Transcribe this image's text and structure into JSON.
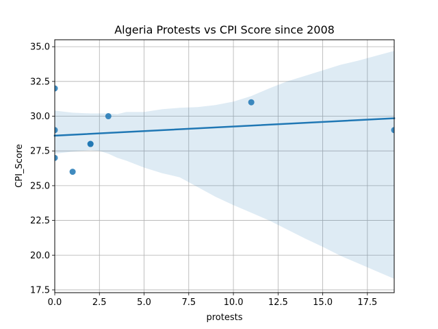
{
  "chart_data": {
    "type": "scatter",
    "title": "Algeria Protests vs CPI Score since 2008",
    "xlabel": "protests",
    "ylabel": "CPI_Score",
    "xlim": [
      0,
      19
    ],
    "ylim": [
      17.3,
      35.5
    ],
    "xticks": [
      "0.0",
      "2.5",
      "5.0",
      "7.5",
      "10.0",
      "12.5",
      "15.0",
      "17.5"
    ],
    "yticks": [
      "17.5",
      "20.0",
      "22.5",
      "25.0",
      "27.5",
      "30.0",
      "32.5",
      "35.0"
    ],
    "grid": true,
    "colors": {
      "points": "#1f77b4",
      "line": "#1f77b4",
      "band": "#1f77b4"
    },
    "points": [
      {
        "x": 0,
        "y": 32
      },
      {
        "x": 0,
        "y": 29
      },
      {
        "x": 0,
        "y": 27
      },
      {
        "x": 1,
        "y": 26
      },
      {
        "x": 2,
        "y": 28
      },
      {
        "x": 2,
        "y": 28
      },
      {
        "x": 3,
        "y": 30
      },
      {
        "x": 11,
        "y": 31
      },
      {
        "x": 19,
        "y": 29
      }
    ],
    "regression_line": {
      "x": [
        0,
        19
      ],
      "y": [
        28.6,
        29.85
      ]
    },
    "confidence_band": {
      "x": [
        0,
        1,
        2,
        2.5,
        3,
        3.5,
        4,
        5,
        6,
        7,
        8,
        9,
        10,
        11,
        12,
        13,
        14,
        15,
        16,
        17,
        18,
        19
      ],
      "upper": [
        30.4,
        30.25,
        30.2,
        30.2,
        30.2,
        30.15,
        30.3,
        30.3,
        30.5,
        30.6,
        30.65,
        30.8,
        31.05,
        31.45,
        32.0,
        32.5,
        32.9,
        33.3,
        33.7,
        34.0,
        34.35,
        34.7
      ],
      "lower": [
        27.3,
        27.45,
        27.55,
        27.5,
        27.3,
        27.0,
        26.8,
        26.3,
        25.9,
        25.6,
        24.9,
        24.2,
        23.6,
        23.05,
        22.5,
        21.85,
        21.2,
        20.6,
        19.95,
        19.4,
        18.85,
        18.3
      ]
    }
  }
}
